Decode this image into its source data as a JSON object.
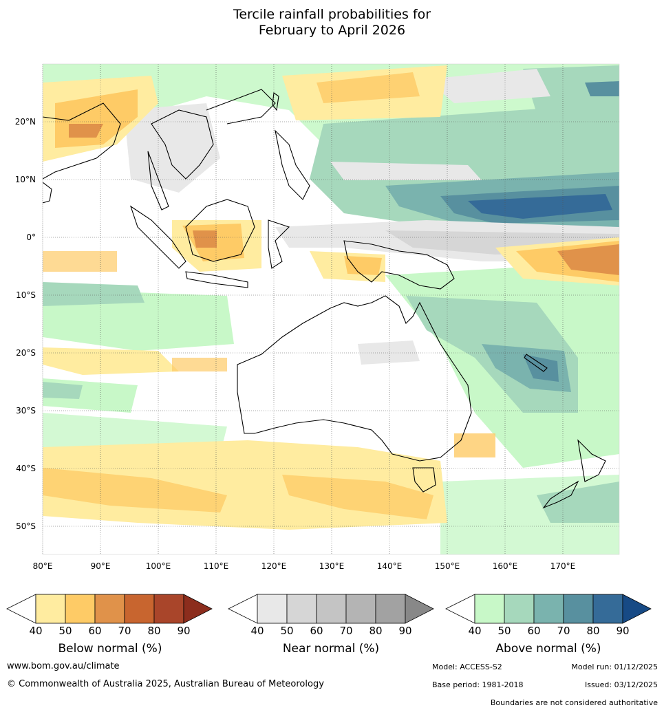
{
  "title_line1": "Tercile rainfall probabilities for",
  "title_line2": "February to April 2026",
  "map": {
    "lon_labels": [
      "80°E",
      "90°E",
      "100°E",
      "110°E",
      "120°E",
      "130°E",
      "140°E",
      "150°E",
      "160°E",
      "170°E"
    ],
    "lat_labels": [
      "20°N",
      "10°N",
      "0°",
      "10°S",
      "20°S",
      "30°S",
      "40°S",
      "50°S"
    ],
    "lon_range": [
      80,
      180
    ],
    "lat_range": [
      -55,
      30
    ]
  },
  "legends": [
    {
      "name": "below",
      "label": "Below normal (%)",
      "ticks": [
        "40",
        "50",
        "60",
        "70",
        "80",
        "90"
      ],
      "colors": [
        "#ffeca0",
        "#fecb66",
        "#e0924a",
        "#c8652f",
        "#a9452a",
        "#8c2d1d"
      ]
    },
    {
      "name": "near",
      "label": "Near normal (%)",
      "ticks": [
        "40",
        "50",
        "60",
        "70",
        "80",
        "90"
      ],
      "colors": [
        "#e8e8e8",
        "#d6d6d6",
        "#c4c4c4",
        "#b4b4b4",
        "#a2a2a2",
        "#888888"
      ]
    },
    {
      "name": "above",
      "label": "Above normal (%)",
      "ticks": [
        "40",
        "50",
        "60",
        "70",
        "80",
        "90"
      ],
      "colors": [
        "#c8f8c8",
        "#a6d8bc",
        "#7ab3ae",
        "#58909f",
        "#356b98",
        "#174a85"
      ]
    }
  ],
  "footer": {
    "website": "www.bom.gov.au/climate",
    "copyright": "© Commonwealth of Australia 2025, Australian Bureau of Meteorology",
    "model": "Model: ACCESS-S2",
    "model_run": "Model run: 01/12/2025",
    "base_period": "Base period: 1981-2018",
    "issued": "Issued: 03/12/2025",
    "disclaimer": "Boundaries are not considered authoritative"
  }
}
